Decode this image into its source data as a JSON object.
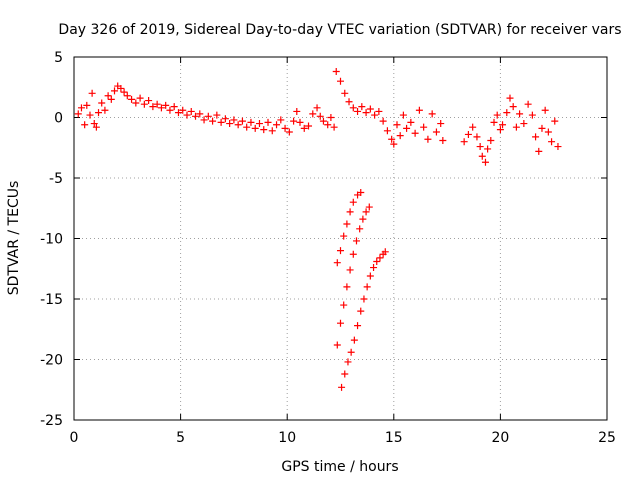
{
  "chart_data": {
    "type": "scatter",
    "title": "Day 326 of 2019, Sidereal Day-to-day VTEC variation (SDTVAR) for receiver vars",
    "xlabel": "GPS time / hours",
    "ylabel": "SDTVAR / TECUs",
    "xlim": [
      0,
      25
    ],
    "ylim": [
      -25,
      5
    ],
    "xticks": [
      0,
      5,
      10,
      15,
      20,
      25
    ],
    "yticks": [
      -25,
      -20,
      -15,
      -10,
      -5,
      0,
      5
    ],
    "grid": true,
    "marker": "plus",
    "series": [
      {
        "name": "SDTVAR",
        "color": "#ff0000",
        "points": [
          [
            0.2,
            0.3
          ],
          [
            0.35,
            0.8
          ],
          [
            0.5,
            -0.6
          ],
          [
            0.6,
            1.0
          ],
          [
            0.75,
            0.2
          ],
          [
            0.85,
            2.0
          ],
          [
            0.95,
            -0.5
          ],
          [
            1.05,
            -0.8
          ],
          [
            1.15,
            0.4
          ],
          [
            1.3,
            1.2
          ],
          [
            1.45,
            0.6
          ],
          [
            1.6,
            1.8
          ],
          [
            1.75,
            1.5
          ],
          [
            1.9,
            2.2
          ],
          [
            2.05,
            2.6
          ],
          [
            2.2,
            2.4
          ],
          [
            2.35,
            2.1
          ],
          [
            2.5,
            1.8
          ],
          [
            2.7,
            1.5
          ],
          [
            2.9,
            1.2
          ],
          [
            3.1,
            1.6
          ],
          [
            3.3,
            1.1
          ],
          [
            3.5,
            1.4
          ],
          [
            3.7,
            0.9
          ],
          [
            3.9,
            1.1
          ],
          [
            4.1,
            0.8
          ],
          [
            4.3,
            1.0
          ],
          [
            4.5,
            0.6
          ],
          [
            4.7,
            0.9
          ],
          [
            4.9,
            0.4
          ],
          [
            5.1,
            0.6
          ],
          [
            5.3,
            0.2
          ],
          [
            5.5,
            0.5
          ],
          [
            5.7,
            0.1
          ],
          [
            5.9,
            0.3
          ],
          [
            6.1,
            -0.2
          ],
          [
            6.3,
            0.1
          ],
          [
            6.5,
            -0.3
          ],
          [
            6.7,
            0.2
          ],
          [
            6.9,
            -0.4
          ],
          [
            7.1,
            -0.1
          ],
          [
            7.3,
            -0.5
          ],
          [
            7.5,
            -0.2
          ],
          [
            7.7,
            -0.6
          ],
          [
            7.9,
            -0.3
          ],
          [
            8.1,
            -0.8
          ],
          [
            8.3,
            -0.4
          ],
          [
            8.5,
            -0.9
          ],
          [
            8.7,
            -0.5
          ],
          [
            8.9,
            -1.0
          ],
          [
            9.1,
            -0.4
          ],
          [
            9.3,
            -1.1
          ],
          [
            9.5,
            -0.6
          ],
          [
            9.7,
            -0.2
          ],
          [
            9.9,
            -0.9
          ],
          [
            10.1,
            -1.2
          ],
          [
            10.3,
            -0.3
          ],
          [
            10.45,
            0.5
          ],
          [
            10.6,
            -0.4
          ],
          [
            10.8,
            -0.9
          ],
          [
            11.0,
            -0.7
          ],
          [
            11.2,
            0.3
          ],
          [
            11.4,
            0.8
          ],
          [
            11.55,
            0.1
          ],
          [
            11.7,
            -0.3
          ],
          [
            11.9,
            -0.6
          ],
          [
            12.05,
            0.0
          ],
          [
            12.2,
            -0.8
          ],
          [
            12.3,
            3.8
          ],
          [
            12.5,
            3.0
          ],
          [
            12.7,
            2.0
          ],
          [
            12.9,
            1.3
          ],
          [
            13.1,
            0.8
          ],
          [
            13.3,
            0.5
          ],
          [
            13.5,
            0.9
          ],
          [
            13.7,
            0.4
          ],
          [
            13.9,
            0.7
          ],
          [
            14.1,
            0.2
          ],
          [
            14.3,
            0.5
          ],
          [
            14.5,
            -0.3
          ],
          [
            14.7,
            -1.1
          ],
          [
            14.9,
            -1.8
          ],
          [
            15.0,
            -2.2
          ],
          [
            15.15,
            -0.6
          ],
          [
            15.3,
            -1.5
          ],
          [
            15.45,
            0.2
          ],
          [
            15.6,
            -0.9
          ],
          [
            15.8,
            -0.4
          ],
          [
            16.0,
            -1.3
          ],
          [
            16.2,
            0.6
          ],
          [
            16.4,
            -0.8
          ],
          [
            16.6,
            -1.8
          ],
          [
            16.8,
            0.3
          ],
          [
            17.0,
            -1.2
          ],
          [
            17.2,
            -0.5
          ],
          [
            17.3,
            -1.9
          ],
          [
            18.3,
            -2.0
          ],
          [
            18.5,
            -1.4
          ],
          [
            18.7,
            -0.8
          ],
          [
            18.9,
            -1.6
          ],
          [
            19.05,
            -2.4
          ],
          [
            19.15,
            -3.2
          ],
          [
            19.3,
            -3.7
          ],
          [
            19.4,
            -2.6
          ],
          [
            19.55,
            -1.9
          ],
          [
            19.7,
            -0.4
          ],
          [
            19.85,
            0.2
          ],
          [
            20.0,
            -1.0
          ],
          [
            20.1,
            -0.6
          ],
          [
            20.3,
            0.4
          ],
          [
            20.45,
            1.6
          ],
          [
            20.6,
            0.9
          ],
          [
            20.75,
            -0.8
          ],
          [
            20.9,
            0.3
          ],
          [
            21.1,
            -0.5
          ],
          [
            21.3,
            1.1
          ],
          [
            21.5,
            0.2
          ],
          [
            21.65,
            -1.6
          ],
          [
            21.8,
            -2.8
          ],
          [
            21.95,
            -0.9
          ],
          [
            22.1,
            0.6
          ],
          [
            22.25,
            -1.2
          ],
          [
            22.4,
            -2.0
          ],
          [
            22.55,
            -0.3
          ],
          [
            22.7,
            -2.4
          ],
          [
            12.35,
            -12.0
          ],
          [
            12.5,
            -11.0
          ],
          [
            12.65,
            -9.8
          ],
          [
            12.8,
            -8.8
          ],
          [
            12.95,
            -7.8
          ],
          [
            13.1,
            -7.0
          ],
          [
            13.3,
            -6.4
          ],
          [
            13.45,
            -6.2
          ],
          [
            12.35,
            -18.8
          ],
          [
            12.5,
            -17.0
          ],
          [
            12.65,
            -15.5
          ],
          [
            12.8,
            -14.0
          ],
          [
            12.95,
            -12.6
          ],
          [
            13.1,
            -11.3
          ],
          [
            13.25,
            -10.2
          ],
          [
            13.4,
            -9.2
          ],
          [
            13.55,
            -8.4
          ],
          [
            13.7,
            -7.8
          ],
          [
            13.85,
            -7.4
          ],
          [
            12.55,
            -22.3
          ],
          [
            12.7,
            -21.2
          ],
          [
            12.85,
            -20.2
          ],
          [
            13.0,
            -19.4
          ],
          [
            13.15,
            -18.4
          ],
          [
            13.3,
            -17.2
          ],
          [
            13.45,
            -16.0
          ],
          [
            13.6,
            -15.0
          ],
          [
            13.75,
            -14.0
          ],
          [
            13.9,
            -13.1
          ],
          [
            14.05,
            -12.4
          ],
          [
            14.2,
            -11.9
          ],
          [
            14.35,
            -11.6
          ],
          [
            14.5,
            -11.3
          ],
          [
            14.6,
            -11.1
          ]
        ]
      }
    ]
  }
}
